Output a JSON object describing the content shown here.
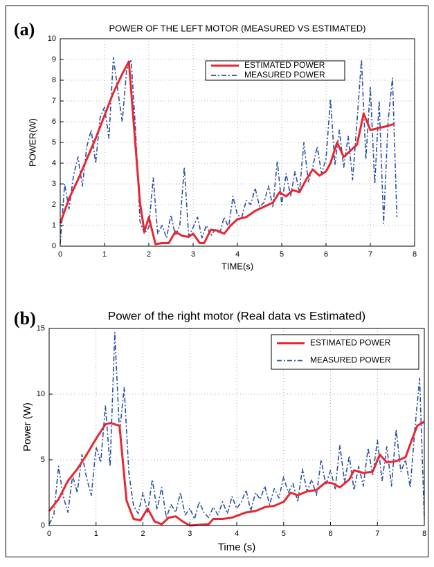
{
  "chart_data": [
    {
      "type": "line",
      "label": "(a)",
      "title": "POWER OF THE LEFT MOTOR (MEASURED VS ESTIMATED)",
      "xlabel": "TIME(s)",
      "ylabel": "POWER(W)",
      "xlim": [
        0,
        8
      ],
      "xticks": [
        0,
        1,
        2,
        3,
        4,
        5,
        6,
        7,
        8
      ],
      "ylim": [
        0,
        10
      ],
      "yticks": [
        0,
        1,
        2,
        3,
        4,
        5,
        6,
        7,
        8,
        9,
        10
      ],
      "grid": true,
      "legend": "upper center",
      "series": [
        {
          "name": "ESTIMATED POWER",
          "color": "#e8262e",
          "style": "solid",
          "x": [
            0,
            0.2,
            0.4,
            0.6,
            0.8,
            1.0,
            1.2,
            1.4,
            1.55,
            1.8,
            1.9,
            2.0,
            2.15,
            2.3,
            2.45,
            2.6,
            2.75,
            2.9,
            3.0,
            3.15,
            3.25,
            3.4,
            3.55,
            3.7,
            3.85,
            4.0,
            4.2,
            4.4,
            4.6,
            4.8,
            4.95,
            5.1,
            5.25,
            5.4,
            5.55,
            5.7,
            5.85,
            6.0,
            6.1,
            6.25,
            6.4,
            6.55,
            6.7,
            6.85,
            7.0,
            7.2,
            7.4,
            7.55
          ],
          "values": [
            1.1,
            2.3,
            3.2,
            4.2,
            5.2,
            6.3,
            7.4,
            8.3,
            8.9,
            2.1,
            0.7,
            1.4,
            0.1,
            0.15,
            0.15,
            0.7,
            0.5,
            0.45,
            0.6,
            0.15,
            0.15,
            0.8,
            0.75,
            0.6,
            1.0,
            1.3,
            1.4,
            1.7,
            1.9,
            2.1,
            2.6,
            2.4,
            2.7,
            2.6,
            3.2,
            3.7,
            3.4,
            3.6,
            4.0,
            5.0,
            4.3,
            4.6,
            4.9,
            6.4,
            5.6,
            5.7,
            5.8,
            5.9
          ]
        },
        {
          "name": "MEASURED POWER",
          "color": "#2b4fa3",
          "style": "dashdot",
          "x": [
            0,
            0.1,
            0.2,
            0.3,
            0.4,
            0.5,
            0.6,
            0.7,
            0.8,
            0.9,
            1.0,
            1.1,
            1.2,
            1.3,
            1.4,
            1.5,
            1.6,
            1.7,
            1.8,
            1.9,
            2.0,
            2.1,
            2.2,
            2.3,
            2.4,
            2.5,
            2.6,
            2.7,
            2.8,
            2.9,
            3.0,
            3.1,
            3.2,
            3.3,
            3.4,
            3.5,
            3.6,
            3.7,
            3.8,
            3.9,
            4.0,
            4.1,
            4.2,
            4.3,
            4.4,
            4.5,
            4.6,
            4.7,
            4.8,
            4.9,
            5.0,
            5.1,
            5.2,
            5.3,
            5.4,
            5.5,
            5.6,
            5.7,
            5.8,
            5.9,
            6.0,
            6.1,
            6.2,
            6.3,
            6.4,
            6.5,
            6.6,
            6.7,
            6.8,
            6.9,
            7.0,
            7.1,
            7.2,
            7.3,
            7.4,
            7.5,
            7.6
          ],
          "values": [
            0.1,
            3.0,
            1.8,
            3.4,
            4.3,
            2.9,
            4.8,
            5.6,
            4.0,
            6.2,
            6.7,
            5.2,
            9.1,
            7.5,
            6.0,
            8.5,
            9.0,
            5.6,
            1.2,
            0.6,
            0.9,
            3.3,
            0.6,
            1.0,
            0.4,
            1.5,
            0.5,
            1.0,
            3.8,
            0.5,
            0.9,
            1.4,
            0.4,
            1.0,
            0.5,
            0.8,
            0.6,
            1.4,
            0.9,
            2.4,
            1.5,
            1.4,
            2.2,
            2.0,
            2.8,
            1.9,
            2.1,
            2.9,
            1.9,
            4.1,
            2.0,
            3.5,
            2.4,
            3.6,
            2.6,
            5.0,
            3.1,
            3.8,
            4.8,
            3.5,
            4.2,
            7.1,
            3.9,
            5.6,
            3.8,
            5.3,
            3.2,
            6.0,
            9.0,
            4.2,
            7.7,
            3.0,
            7.0,
            1.1,
            6.0,
            8.1,
            1.4
          ]
        }
      ]
    },
    {
      "type": "line",
      "label": "(b)",
      "title": "Power of the right motor (Real data vs Estimated)",
      "xlabel": "Time (s)",
      "ylabel": "Power (W)",
      "xlim": [
        0,
        8
      ],
      "xticks": [
        0,
        1,
        2,
        3,
        4,
        5,
        6,
        7,
        8
      ],
      "ylim": [
        0,
        15
      ],
      "yticks": [
        0,
        5,
        10,
        15
      ],
      "grid": true,
      "legend": "upper right",
      "series": [
        {
          "name": "ESTIMATED POWER",
          "color": "#e8262e",
          "style": "solid",
          "x": [
            0,
            0.2,
            0.4,
            0.6,
            0.8,
            1.0,
            1.2,
            1.3,
            1.5,
            1.65,
            1.8,
            1.95,
            2.1,
            2.25,
            2.4,
            2.55,
            2.7,
            2.85,
            3.0,
            3.2,
            3.4,
            3.5,
            3.7,
            3.9,
            4.05,
            4.2,
            4.4,
            4.6,
            4.8,
            5.0,
            5.15,
            5.3,
            5.5,
            5.7,
            5.9,
            6.05,
            6.2,
            6.4,
            6.5,
            6.7,
            6.9,
            7.05,
            7.2,
            7.4,
            7.6,
            7.7,
            7.85,
            8.0
          ],
          "values": [
            1.1,
            2.0,
            3.4,
            4.3,
            5.4,
            6.6,
            7.7,
            7.8,
            7.6,
            1.9,
            0.5,
            0.4,
            1.3,
            0.3,
            0.1,
            0.6,
            0.7,
            0.3,
            0.0,
            0.05,
            0.1,
            0.5,
            0.5,
            0.6,
            0.8,
            1.0,
            1.1,
            1.4,
            1.5,
            1.8,
            2.5,
            2.3,
            2.6,
            2.7,
            3.3,
            3.2,
            2.9,
            3.5,
            4.2,
            4.0,
            4.1,
            5.4,
            4.8,
            4.9,
            5.2,
            6.2,
            7.6,
            7.9
          ]
        },
        {
          "name": "MEASURED POWER",
          "color": "#2b4fa3",
          "style": "dashdot",
          "x": [
            0,
            0.1,
            0.2,
            0.3,
            0.4,
            0.5,
            0.6,
            0.7,
            0.8,
            0.9,
            1.0,
            1.1,
            1.2,
            1.3,
            1.4,
            1.5,
            1.6,
            1.7,
            1.8,
            1.9,
            2.0,
            2.1,
            2.2,
            2.3,
            2.4,
            2.5,
            2.6,
            2.7,
            2.8,
            2.9,
            3.0,
            3.1,
            3.2,
            3.3,
            3.4,
            3.5,
            3.6,
            3.7,
            3.8,
            3.9,
            4.0,
            4.1,
            4.2,
            4.3,
            4.4,
            4.5,
            4.6,
            4.7,
            4.8,
            4.9,
            5.0,
            5.1,
            5.2,
            5.3,
            5.4,
            5.5,
            5.6,
            5.7,
            5.8,
            5.9,
            6.0,
            6.1,
            6.2,
            6.3,
            6.4,
            6.5,
            6.6,
            6.7,
            6.8,
            6.9,
            7.0,
            7.1,
            7.2,
            7.3,
            7.4,
            7.5,
            7.6,
            7.7,
            7.8,
            7.9,
            8.0
          ],
          "values": [
            0.1,
            0.8,
            4.5,
            2.2,
            1.0,
            3.8,
            2.5,
            5.4,
            3.6,
            2.3,
            6.0,
            4.8,
            9.1,
            4.5,
            14.7,
            7.0,
            10.5,
            4.0,
            1.5,
            0.9,
            2.5,
            1.0,
            3.5,
            1.2,
            2.9,
            0.6,
            1.6,
            1.0,
            2.5,
            0.8,
            1.3,
            0.5,
            1.8,
            1.0,
            0.6,
            1.4,
            0.8,
            1.8,
            0.9,
            2.2,
            1.3,
            1.8,
            2.7,
            1.1,
            2.5,
            2.0,
            3.0,
            1.6,
            2.8,
            2.1,
            3.7,
            2.5,
            3.2,
            1.8,
            4.3,
            2.6,
            3.5,
            2.3,
            5.0,
            3.1,
            4.2,
            2.8,
            6.1,
            3.3,
            5.3,
            2.7,
            4.5,
            3.0,
            5.9,
            3.8,
            6.5,
            3.4,
            6.0,
            3.0,
            7.3,
            4.1,
            5.0,
            2.9,
            7.4,
            11.2,
            0.5
          ]
        }
      ]
    }
  ]
}
